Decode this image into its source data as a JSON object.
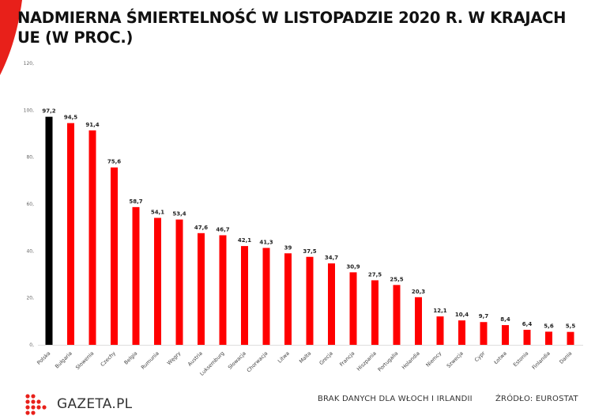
{
  "chart_data": {
    "type": "bar",
    "title": "NADMIERNA ŚMIERTELNOŚĆ W LISTOPADZIE 2020 R. W KRAJACH UE (W PROC.)",
    "xlabel": "",
    "ylabel": "",
    "ylim": [
      0,
      120
    ],
    "yticks": [
      "0,",
      "20,",
      "40,",
      "60,",
      "80,",
      "100,",
      "120,"
    ],
    "grid": false,
    "categories": [
      "Polska",
      "Bułgaria",
      "Słowenia",
      "Czechy",
      "Belgia",
      "Rumunia",
      "Węgry",
      "Austria",
      "Luksemburg",
      "Słowacja",
      "Chorwacja",
      "Litwa",
      "Malta",
      "Grecja",
      "Francja",
      "Hiszpania",
      "Portugalia",
      "Holandia",
      "Niemcy",
      "Szwecja",
      "Cypr",
      "Łotwa",
      "Estonia",
      "Finlandia",
      "Dania"
    ],
    "values": [
      97.2,
      94.5,
      91.4,
      75.6,
      58.7,
      54.1,
      53.4,
      47.6,
      46.7,
      42.1,
      41.3,
      39,
      37.5,
      34.7,
      30.9,
      27.5,
      25.5,
      20.3,
      12.1,
      10.4,
      9.7,
      8.4,
      6.4,
      5.6,
      5.5
    ],
    "labels": [
      "97,2",
      "94,5",
      "91,4",
      "75,6",
      "58,7",
      "54,1",
      "53,4",
      "47,6",
      "46,7",
      "42,1",
      "41,3",
      "39",
      "37,5",
      "34,7",
      "30,9",
      "27,5",
      "25,5",
      "20,3",
      "12,1",
      "10,4",
      "9,7",
      "8,4",
      "6,4",
      "5,6",
      "5,5"
    ],
    "highlight_index": 0,
    "colors": {
      "highlight": "#000000",
      "bar": "#ff0000",
      "accent": "#e8201a"
    }
  },
  "footer": {
    "logo": "GAZETA.PL",
    "note": "BRAK DANYCH DLA WŁOCH I IRLANDII",
    "source": "ŹRÓDŁO: EUROSTAT"
  }
}
